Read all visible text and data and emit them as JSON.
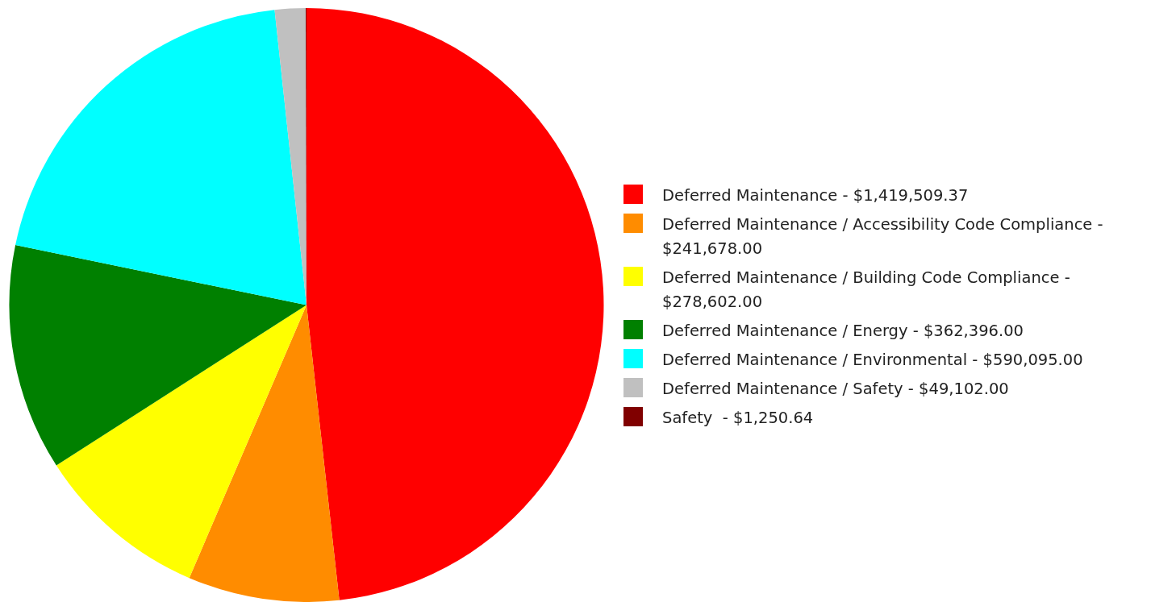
{
  "chart_data": {
    "type": "pie",
    "categories": [
      "Deferred Maintenance -",
      "Deferred Maintenance / Accessibility Code Compliance -",
      "Deferred Maintenance / Building Code Compliance -",
      "Deferred Maintenance / Energy -",
      "Deferred Maintenance / Environmental -",
      "Deferred Maintenance / Safety -",
      "Safety  -"
    ],
    "values": [
      1419509.37,
      241678.0,
      278602.0,
      362396.0,
      590095.0,
      49102.0,
      1250.64
    ],
    "value_labels": [
      "$1,419,509.37",
      "$241,678.00",
      "$278,602.00",
      "$362,396.00",
      "$590,095.00",
      "$49,102.00",
      "$1,250.64"
    ],
    "colors": [
      "#ff0000",
      "#ff8c00",
      "#ffff00",
      "#008000",
      "#00ffff",
      "#c0c0c0",
      "#800000"
    ],
    "legend": "right"
  }
}
